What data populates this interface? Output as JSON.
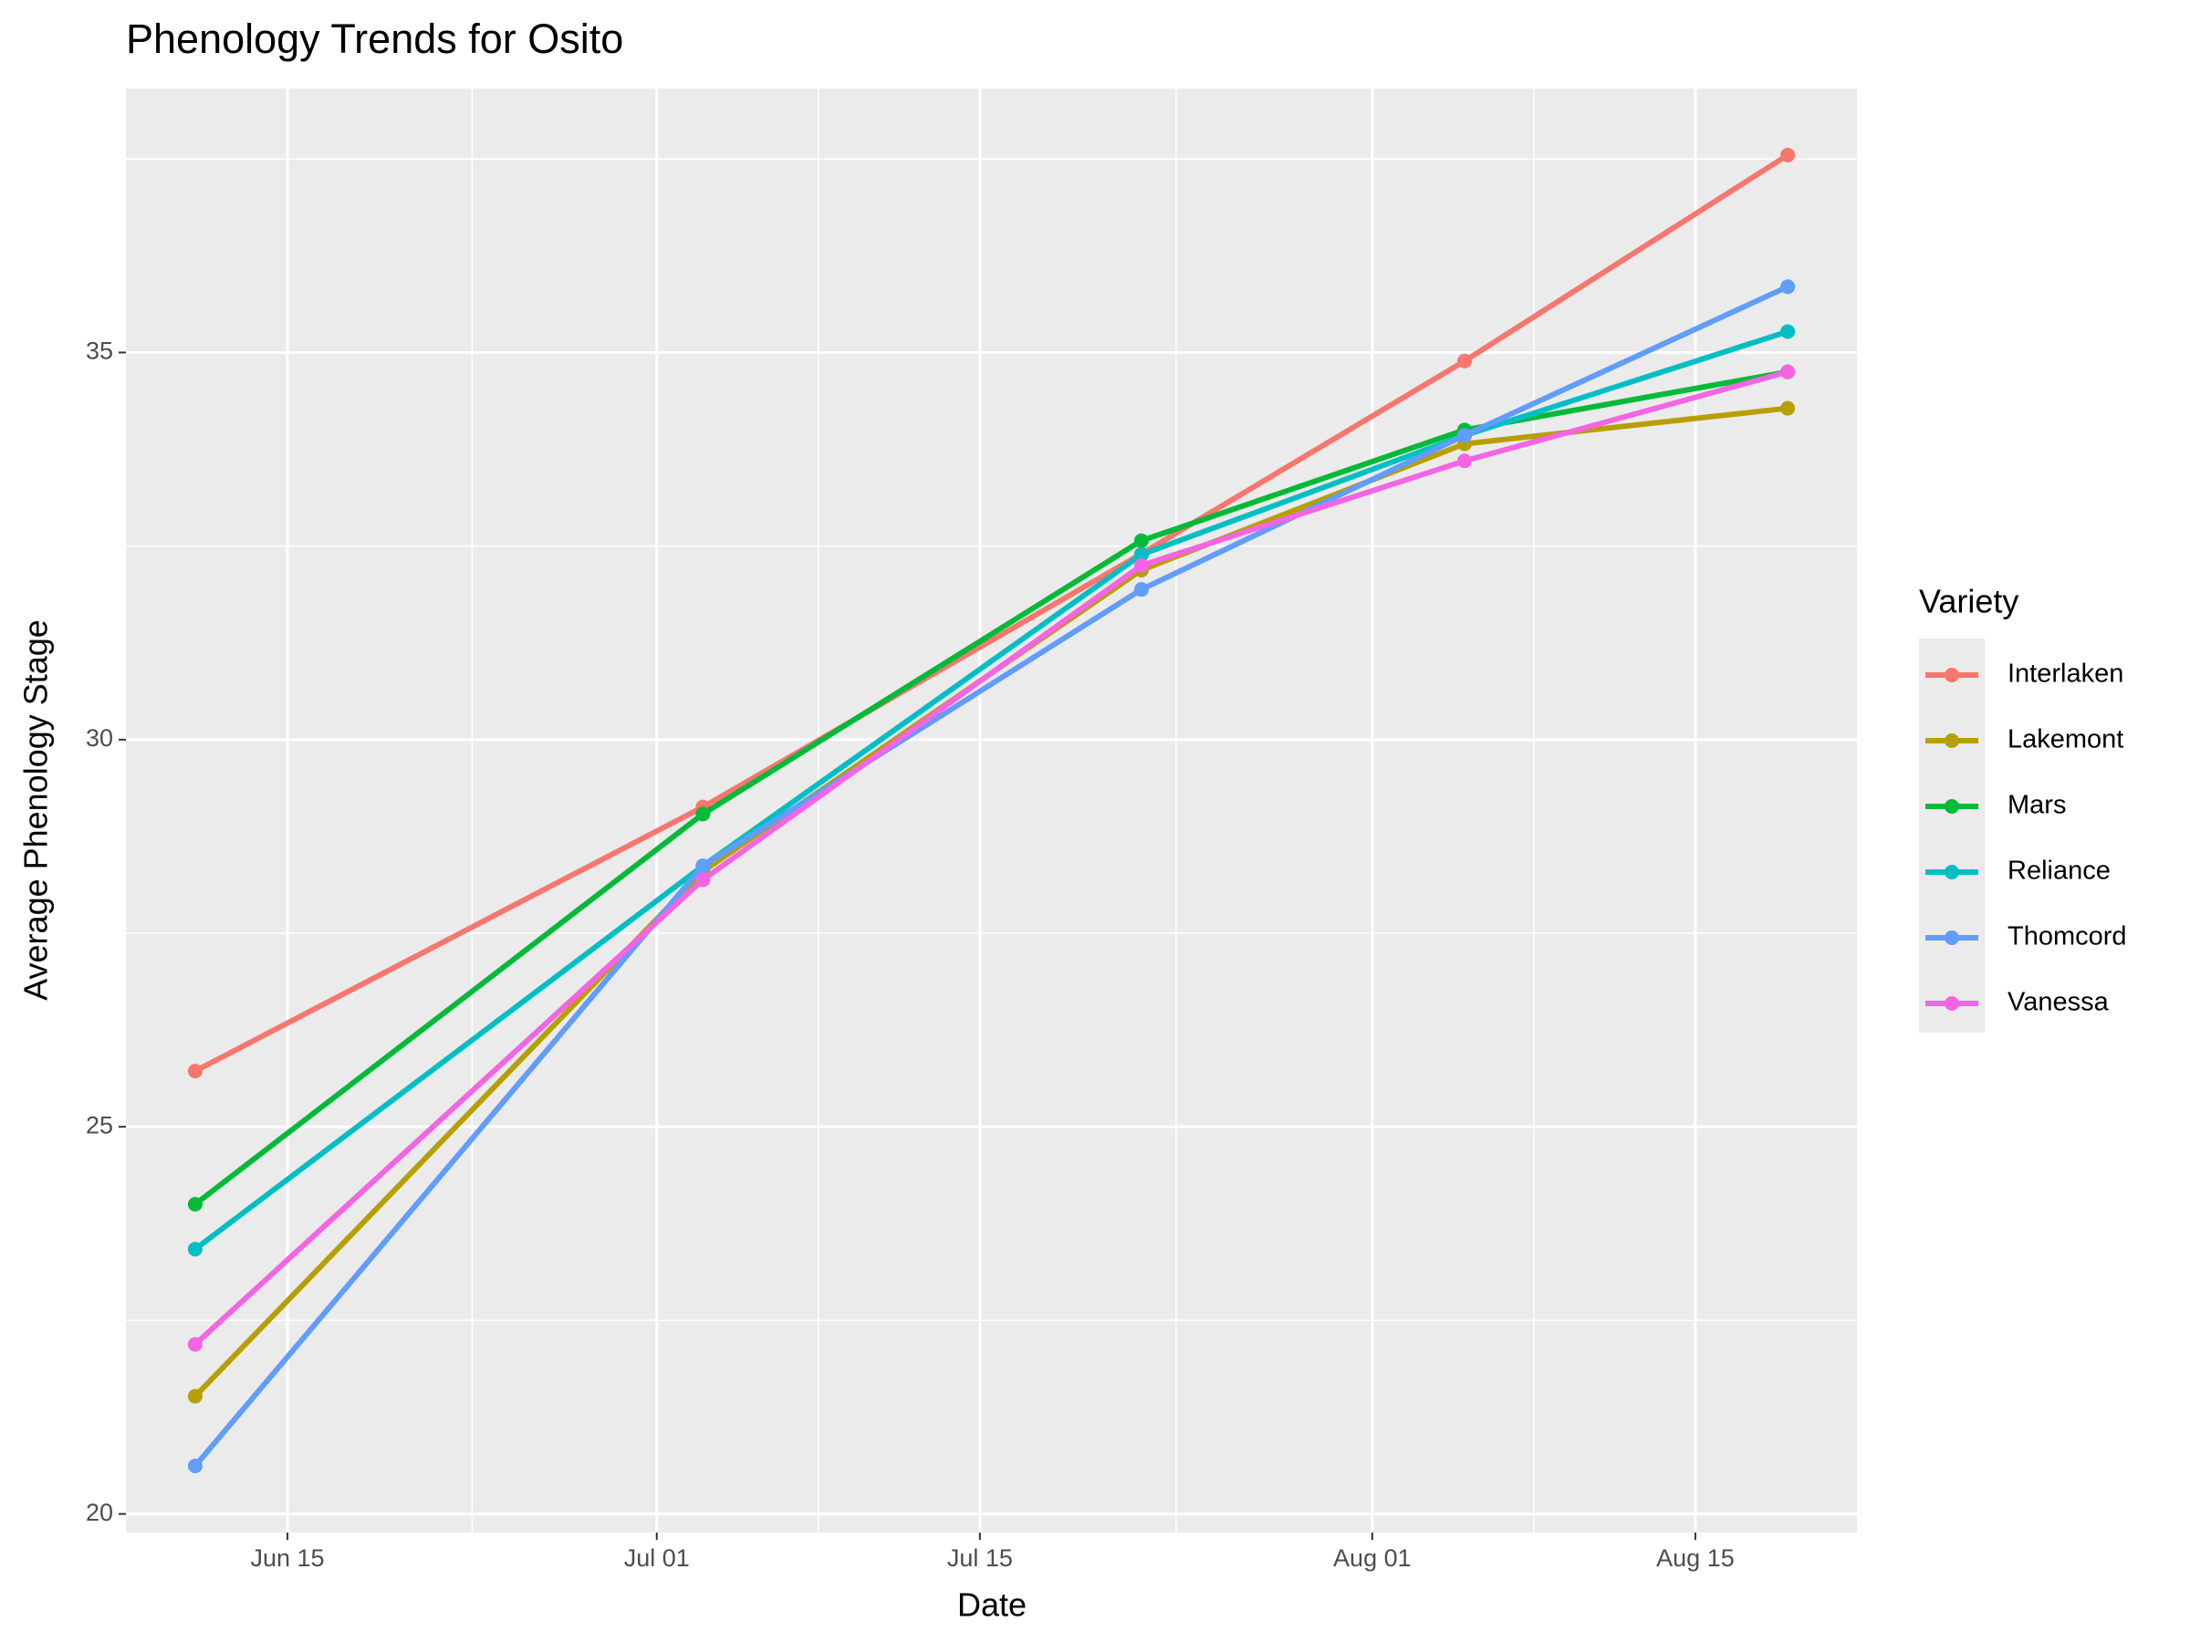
{
  "chart_data": {
    "type": "line",
    "title": "Phenology Trends for Osito",
    "x_label": "Date",
    "y_label": "Average Phenology Stage",
    "legend_title": "Variety",
    "legend_position": "right",
    "grid": true,
    "x": [
      "06-11",
      "07-03",
      "07-22",
      "08-05",
      "08-19"
    ],
    "xlim": [
      "06-08",
      "08-22"
    ],
    "xticks": [
      {
        "value": "06-15",
        "label": "Jun 15"
      },
      {
        "value": "07-01",
        "label": "Jul 01"
      },
      {
        "value": "07-15",
        "label": "Jul 15"
      },
      {
        "value": "08-01",
        "label": "Aug 01"
      },
      {
        "value": "08-15",
        "label": "Aug 15"
      }
    ],
    "ylim": [
      19.76,
      38.41
    ],
    "yticks": [
      20,
      25,
      30,
      35
    ],
    "series": [
      {
        "name": "Interlaken",
        "color": "#F8766D",
        "values": [
          25.72,
          29.13,
          32.4,
          34.89,
          37.55
        ]
      },
      {
        "name": "Lakemont",
        "color": "#B79F00",
        "values": [
          21.52,
          28.3,
          32.19,
          33.82,
          34.28
        ]
      },
      {
        "name": "Mars",
        "color": "#00BA38",
        "values": [
          24.0,
          29.04,
          32.57,
          34.0,
          34.75
        ]
      },
      {
        "name": "Reliance",
        "color": "#00BFC4",
        "values": [
          23.42,
          28.37,
          32.39,
          33.93,
          35.27
        ]
      },
      {
        "name": "Thomcord",
        "color": "#619CFF",
        "values": [
          20.62,
          28.37,
          31.94,
          33.93,
          35.85
        ]
      },
      {
        "name": "Vanessa",
        "color": "#F564E3",
        "values": [
          22.19,
          28.19,
          32.25,
          33.6,
          34.75
        ]
      }
    ]
  }
}
